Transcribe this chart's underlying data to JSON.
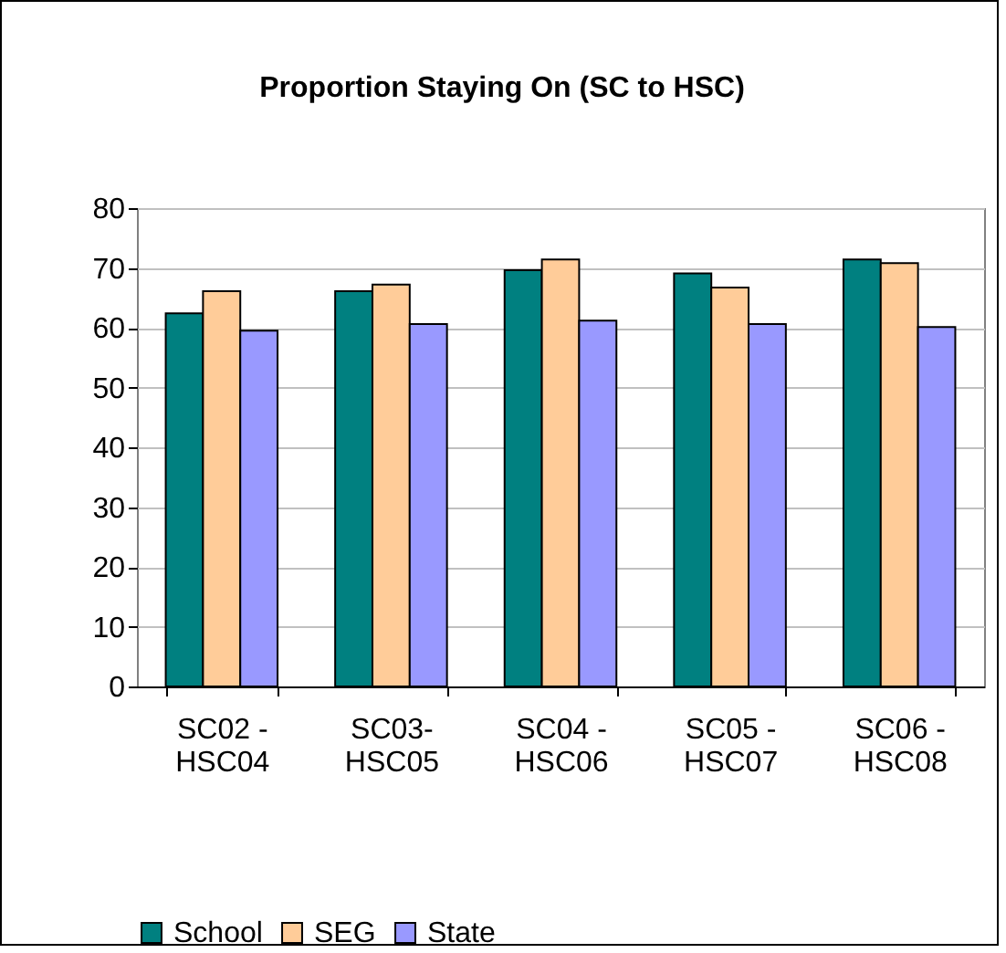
{
  "chart_data": {
    "type": "bar",
    "title": "Proportion Staying On (SC to HSC)",
    "categories": [
      "SC02 - HSC04",
      "SC03- HSC05",
      "SC04 - HSC06",
      "SC05 - HSC07",
      "SC06 - HSC08"
    ],
    "series": [
      {
        "name": "School",
        "color": "#008080",
        "values": [
          62.4,
          66.1,
          69.6,
          69.1,
          71.4
        ]
      },
      {
        "name": "SEG",
        "color": "#ffcc99",
        "values": [
          66.1,
          67.2,
          71.4,
          66.7,
          70.8
        ]
      },
      {
        "name": "State",
        "color": "#9999ff",
        "values": [
          59.5,
          60.6,
          61.2,
          60.6,
          60.1
        ]
      }
    ],
    "ylim": [
      0,
      80
    ],
    "yticks": [
      0,
      10,
      20,
      30,
      40,
      50,
      60,
      70,
      80
    ],
    "grid": "y",
    "legend": "bottom"
  }
}
